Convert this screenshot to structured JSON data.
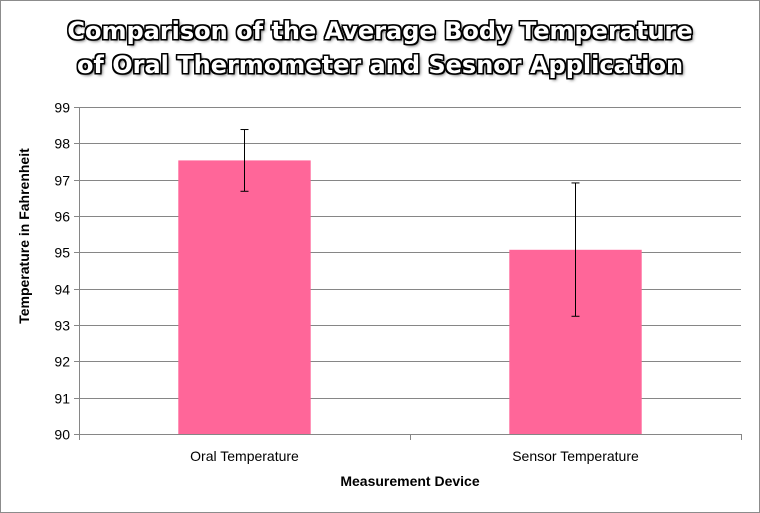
{
  "chart_data": {
    "type": "bar",
    "title_lines": [
      "Comparison of the Average Body Temperature",
      "of Oral Thermometer and Sesnor Application"
    ],
    "xlabel": "Measurement Device",
    "ylabel": "Temperature in Fahrenheit",
    "categories": [
      "Oral Temperature",
      "Sensor Temperature"
    ],
    "values": [
      97.53,
      95.07
    ],
    "error_bars": [
      {
        "low": 96.68,
        "high": 98.38
      },
      {
        "low": 93.24,
        "high": 96.91
      }
    ],
    "ylim": [
      90,
      99
    ],
    "yticks": [
      90,
      91,
      92,
      93,
      94,
      95,
      96,
      97,
      98,
      99
    ],
    "grid": true,
    "legend": "none",
    "bar_color": "#FF6699"
  }
}
